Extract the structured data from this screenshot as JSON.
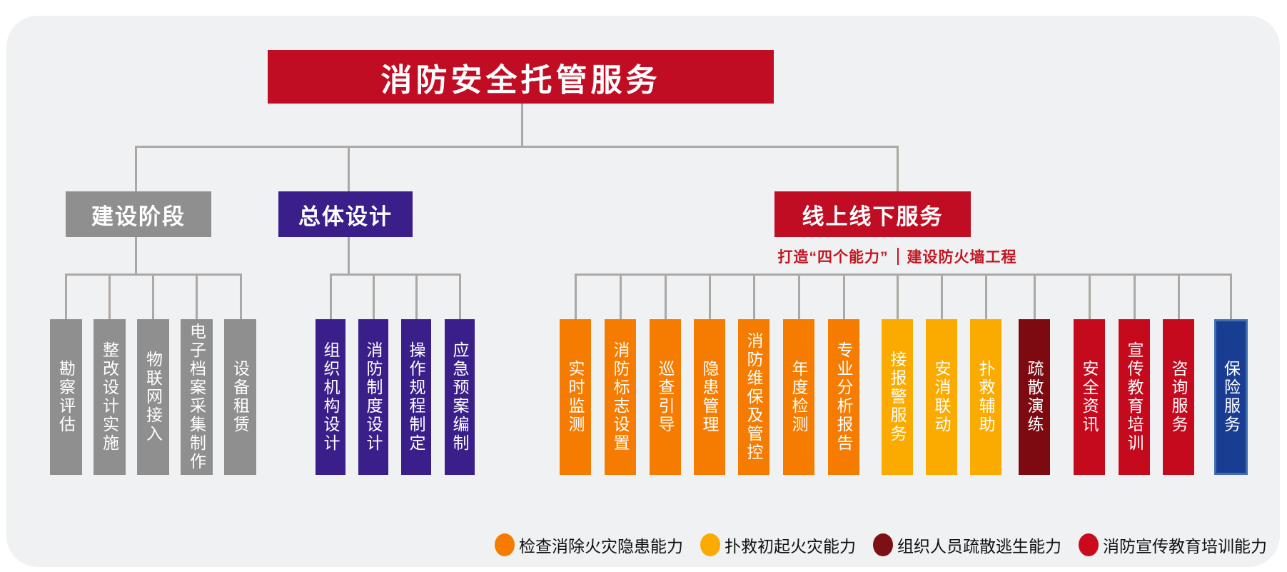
{
  "root": {
    "title": "消防安全托管服务"
  },
  "branches": {
    "construction": {
      "label": "建设阶段",
      "children": [
        "勘察评估",
        "整改设计实施",
        "物联网接入",
        "电子档案采集制作",
        "设备租赁"
      ]
    },
    "design": {
      "label": "总体设计",
      "children": [
        "组织机构设计",
        "消防制度设计",
        "操作规程制定",
        "应急预案编制"
      ]
    },
    "online": {
      "label": "线上线下服务",
      "subtitle_left": "打造“四个能力”",
      "subtitle_right": "建设防火墙工程",
      "children": [
        {
          "label": "实时监测",
          "capability": "检查消除火灾隐患能力",
          "color": "#f57c00"
        },
        {
          "label": "消防标志设置",
          "capability": "检查消除火灾隐患能力",
          "color": "#f57c00"
        },
        {
          "label": "巡查引导",
          "capability": "检查消除火灾隐患能力",
          "color": "#f57c00"
        },
        {
          "label": "隐患管理",
          "capability": "检查消除火灾隐患能力",
          "color": "#f57c00"
        },
        {
          "label": "消防维保及管控",
          "capability": "检查消除火灾隐患能力",
          "color": "#f57c00"
        },
        {
          "label": "年度检测",
          "capability": "检查消除火灾隐患能力",
          "color": "#f57c00"
        },
        {
          "label": "专业分析报告",
          "capability": "检查消除火灾隐患能力",
          "color": "#f57c00"
        },
        {
          "label": "接报警服务",
          "capability": "扑救初起火灾能力",
          "color": "#fbaa00"
        },
        {
          "label": "安消联动",
          "capability": "扑救初起火灾能力",
          "color": "#fbaa00"
        },
        {
          "label": "扑救辅助",
          "capability": "扑救初起火灾能力",
          "color": "#fbaa00"
        },
        {
          "label": "疏散演练",
          "capability": "组织人员疏散逃生能力",
          "color": "#7c0a10"
        },
        {
          "label": "安全资讯",
          "capability": "消防宣传教育培训能力",
          "color": "#c60a1e"
        },
        {
          "label": "宣传教育培训",
          "capability": "消防宣传教育培训能力",
          "color": "#c60a1e"
        },
        {
          "label": "咨询服务",
          "capability": "消防宣传教育培训能力",
          "color": "#c60a1e"
        },
        {
          "label": "保险服务",
          "capability": "",
          "color": "#1a3d94"
        }
      ]
    }
  },
  "legend": {
    "items": [
      {
        "label": "检查消除火灾隐患能力",
        "color": "#f57c00"
      },
      {
        "label": "扑救初起火灾能力",
        "color": "#fbaa00"
      },
      {
        "label": "组织人员疏散逃生能力",
        "color": "#7c1014"
      },
      {
        "label": "消防宣传教育培训能力",
        "color": "#cc0a1e"
      }
    ]
  },
  "colors": {
    "brand_red": "#c10d24",
    "gray": "#8f8f8f",
    "purple": "#3a1f8b",
    "blue": "#1a3d94",
    "card_background": "#eff1f2",
    "connector": "#aba8a5",
    "subtitle_red": "#c31722"
  }
}
